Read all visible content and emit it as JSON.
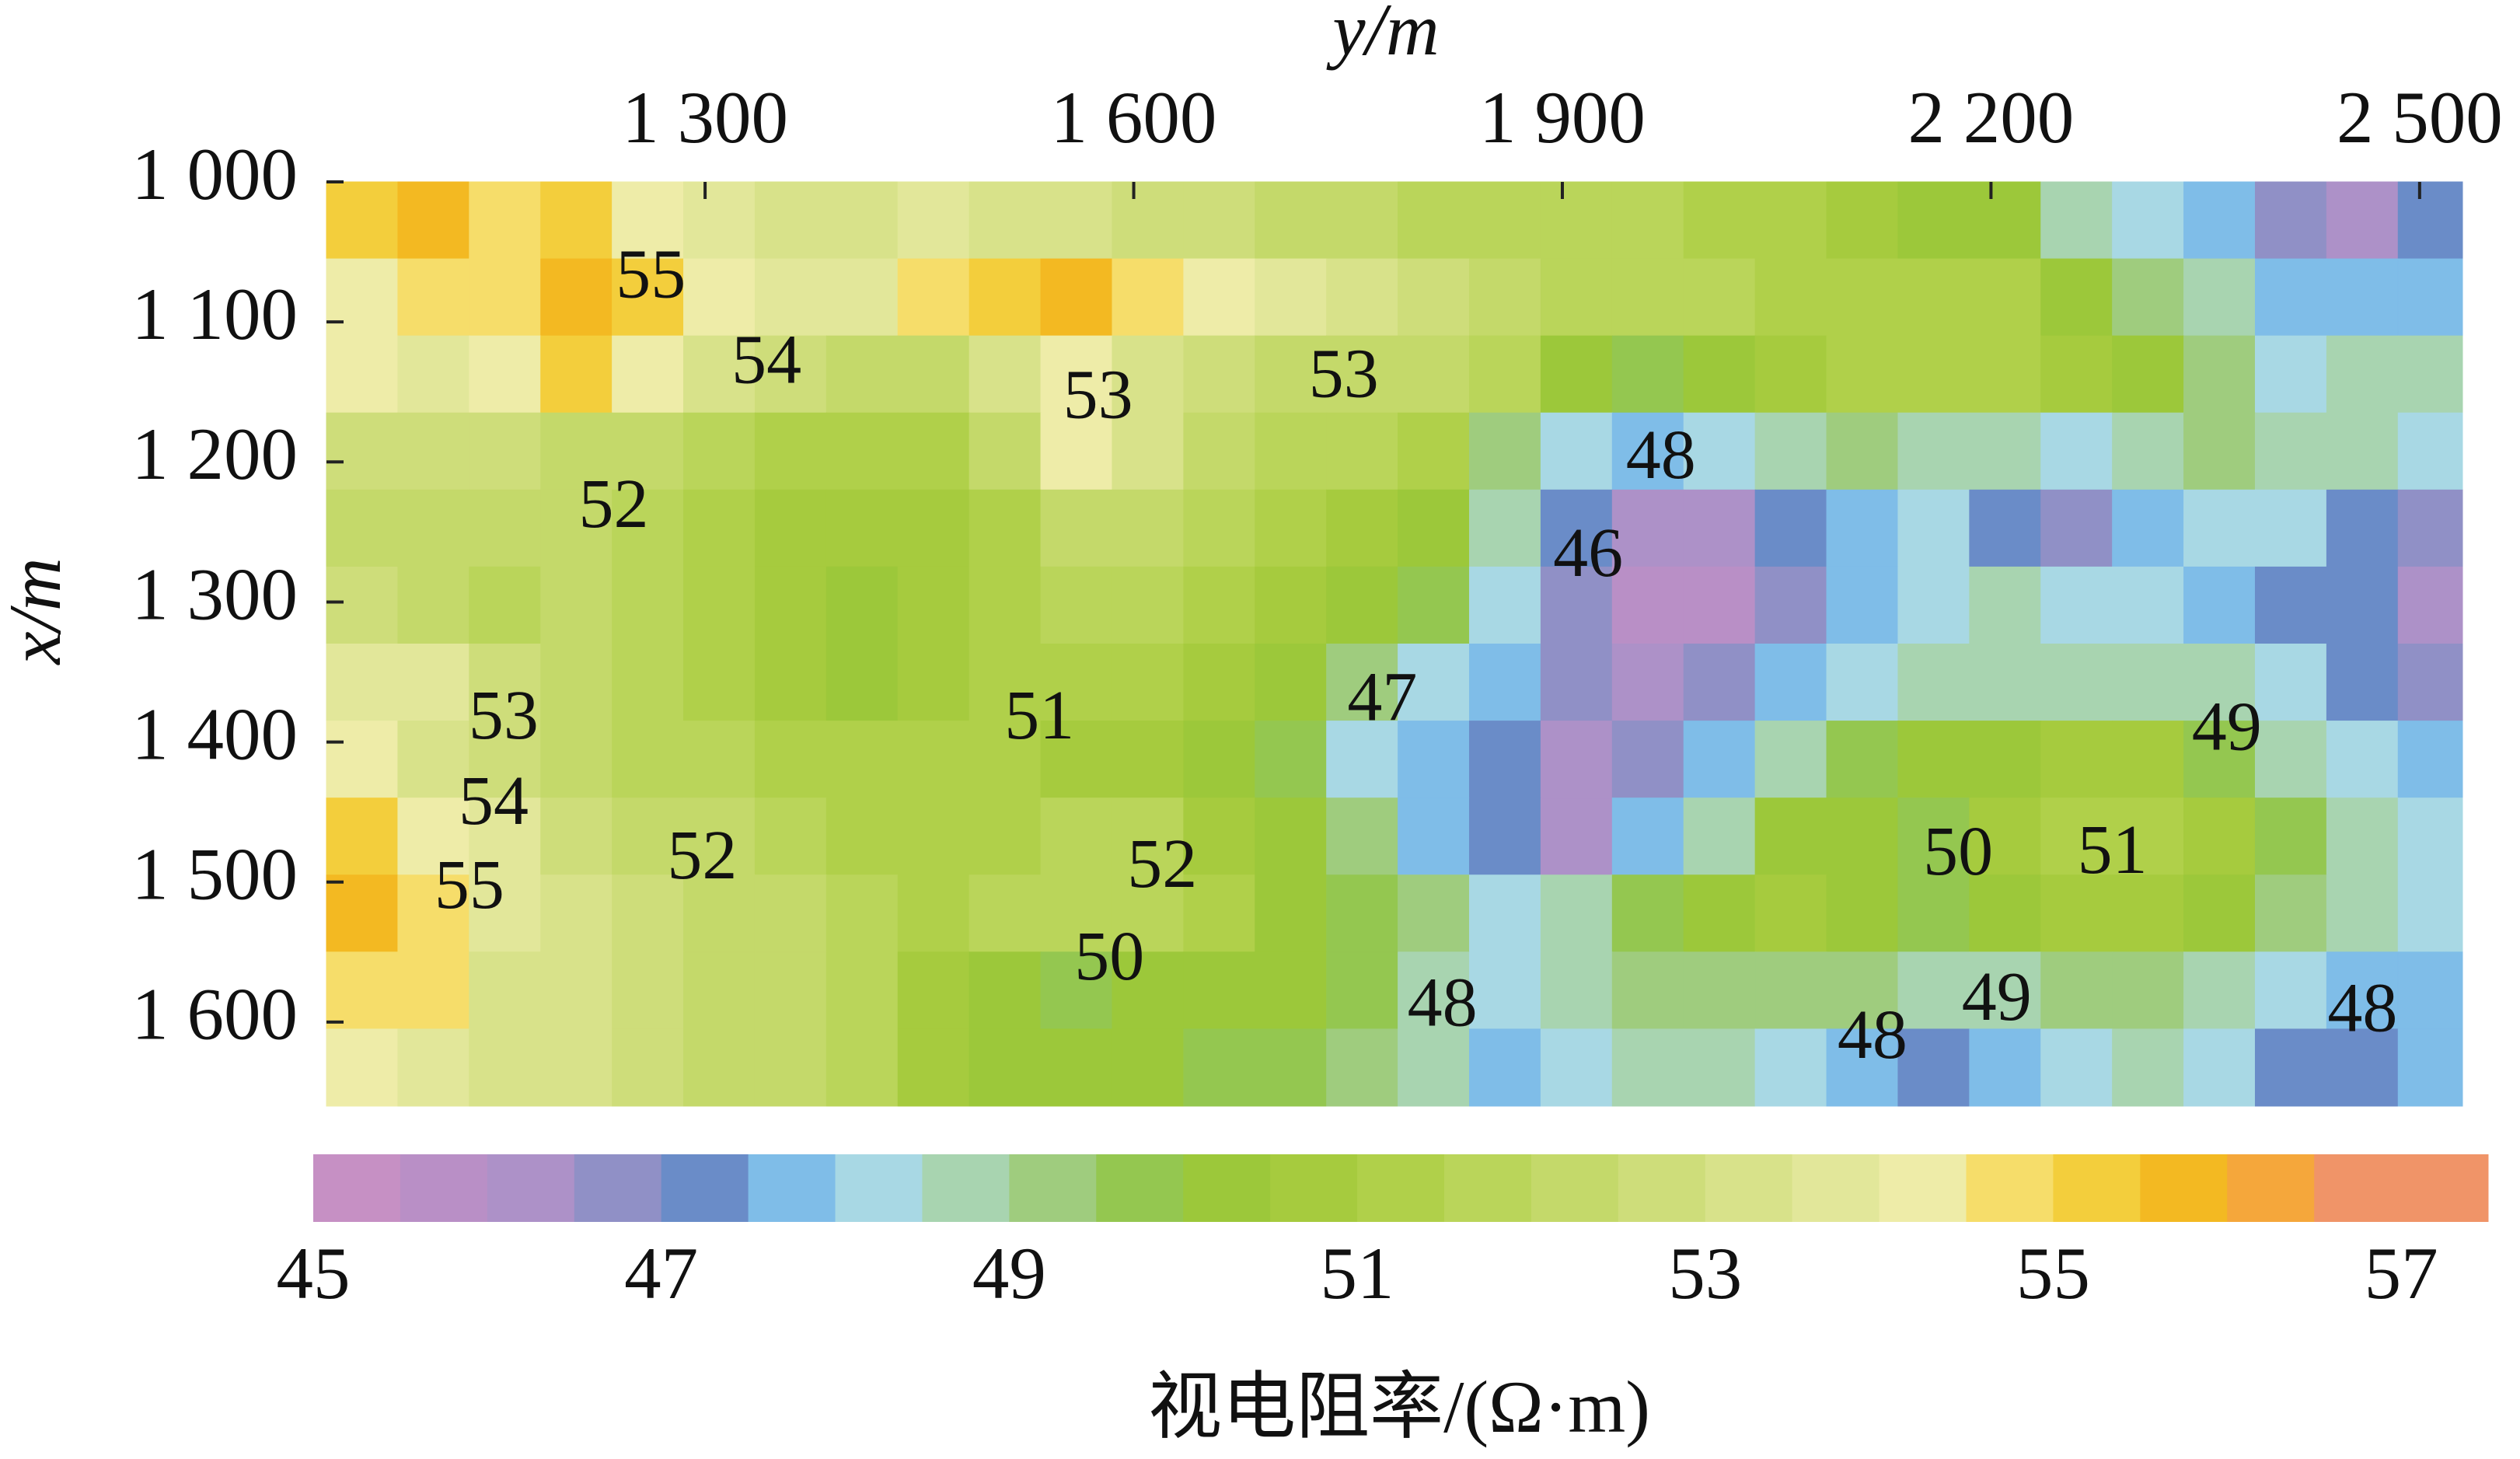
{
  "chart_data": {
    "type": "contour",
    "xlabel": "y/m",
    "ylabel": "x/m",
    "colorbar_label": "视电阻率/(Ω·m)",
    "xlim": [
      1035,
      2530
    ],
    "xticks": [
      {
        "value": 1300,
        "label": "1 300"
      },
      {
        "value": 1600,
        "label": "1 600"
      },
      {
        "value": 1900,
        "label": "1 900"
      },
      {
        "value": 2200,
        "label": "2 200"
      },
      {
        "value": 2500,
        "label": "2 500"
      }
    ],
    "ylim": [
      1000,
      1660
    ],
    "y_inverted": true,
    "yticks": [
      {
        "value": 1000,
        "label": "1 000"
      },
      {
        "value": 1100,
        "label": "1 100"
      },
      {
        "value": 1200,
        "label": "1 200"
      },
      {
        "value": 1300,
        "label": "1 300"
      },
      {
        "value": 1400,
        "label": "1 400"
      },
      {
        "value": 1500,
        "label": "1 500"
      },
      {
        "value": 1600,
        "label": "1 600"
      }
    ],
    "clim": [
      45,
      57.5
    ],
    "cticks": [
      45,
      47,
      49,
      51,
      53,
      55,
      57
    ],
    "colors": [
      "#c690c4",
      "#b98fc6",
      "#ad91c8",
      "#9090c6",
      "#6a8cc8",
      "#7fbde8",
      "#a8d8e4",
      "#a8d4b0",
      "#9fcc7e",
      "#94c750",
      "#9cc83a",
      "#a6cb3e",
      "#b0d04a",
      "#bad55a",
      "#c4d96a",
      "#cedd7a",
      "#d8e28a",
      "#e2e79a",
      "#eeeca8",
      "#f6dd6a",
      "#f3ce3c",
      "#f3b922",
      "#f5a73b",
      "#f09468",
      "#f09468"
    ],
    "x": [
      1060,
      1110,
      1160,
      1210,
      1260,
      1310,
      1360,
      1410,
      1460,
      1510,
      1560,
      1610,
      1660,
      1710,
      1760,
      1810,
      1860,
      1910,
      1960,
      2010,
      2060,
      2110,
      2160,
      2210,
      2260,
      2310,
      2360,
      2410,
      2460,
      2510
    ],
    "y": [
      1027.5,
      1082.5,
      1137.5,
      1192.5,
      1247.5,
      1302.5,
      1357.5,
      1412.5,
      1467.5,
      1522.5,
      1577.5,
      1632.5
    ],
    "z": [
      [
        55,
        55.5,
        54.5,
        55,
        54,
        53.5,
        53,
        53,
        53.5,
        53,
        53,
        52.5,
        52.5,
        52,
        52,
        51.5,
        51.5,
        51.5,
        51.5,
        51,
        51,
        50.5,
        50,
        50,
        48.5,
        48,
        47.5,
        46.5,
        46,
        47
      ],
      [
        54,
        54.5,
        54.5,
        55.5,
        55,
        54,
        53.5,
        53.5,
        54.5,
        55,
        55.5,
        54.5,
        54,
        53.5,
        53,
        52.5,
        52,
        51.5,
        51.5,
        51.5,
        51,
        51,
        51,
        51,
        50,
        49,
        48.5,
        47.5,
        47.5,
        47.5
      ],
      [
        54,
        53.5,
        54,
        55,
        54,
        53,
        52.5,
        52,
        52,
        53,
        54,
        53,
        52.5,
        52,
        52,
        52,
        51.5,
        50,
        49.5,
        50,
        50.5,
        51,
        51,
        51,
        50.5,
        50,
        49,
        48,
        48.5,
        48.5
      ],
      [
        52.5,
        52.5,
        52.5,
        52,
        52,
        51.5,
        51,
        51,
        51,
        52,
        54,
        53,
        52,
        51.5,
        51.5,
        51,
        49,
        48,
        47.5,
        48,
        48.5,
        49,
        48.5,
        48.5,
        48,
        48.5,
        49,
        48.5,
        48.5,
        48
      ],
      [
        52,
        52,
        52,
        52,
        51.5,
        51,
        50.5,
        50.5,
        50.5,
        51,
        52,
        52,
        51.5,
        51,
        50.5,
        50,
        48.5,
        47,
        46,
        46,
        47,
        47.5,
        48,
        47,
        46.5,
        47.5,
        48,
        48,
        47,
        46.5
      ],
      [
        52.5,
        52,
        51.5,
        52,
        51.5,
        51,
        50.5,
        50,
        50.5,
        51,
        51.5,
        51.5,
        51,
        50.5,
        50,
        49.5,
        48,
        46.5,
        45.5,
        45.5,
        46.5,
        47.5,
        48,
        48.5,
        48,
        48,
        47.5,
        47,
        47,
        46
      ],
      [
        53.5,
        53.5,
        52.5,
        52,
        51.5,
        51,
        50.5,
        50,
        50.5,
        51,
        51,
        51,
        50.5,
        50,
        49,
        48,
        47.5,
        46.5,
        46,
        46.5,
        47.5,
        48,
        48.5,
        48.5,
        48.5,
        48.5,
        48.5,
        48,
        47,
        46.5
      ],
      [
        54,
        53,
        52.5,
        52,
        51.5,
        51.5,
        51,
        51,
        51,
        51,
        50.5,
        50.5,
        50,
        49.5,
        48,
        47.5,
        47,
        46,
        46.5,
        47.5,
        48.5,
        49.5,
        50,
        50,
        50.5,
        50.5,
        49.5,
        48.5,
        48,
        47.5
      ],
      [
        55,
        54,
        53.5,
        52.5,
        52,
        52,
        51.5,
        51,
        51,
        51,
        51.5,
        51.5,
        50.5,
        50,
        49,
        47.5,
        47,
        46,
        47.5,
        48.5,
        50,
        50,
        49.5,
        50.5,
        51,
        51,
        50.5,
        49.5,
        48.5,
        48
      ],
      [
        55.5,
        54.5,
        53.5,
        53,
        52.5,
        52,
        52,
        51.5,
        51,
        51.5,
        51.5,
        51.5,
        51,
        50,
        49.5,
        49,
        48,
        48.5,
        49.5,
        50,
        50.5,
        50,
        49.5,
        50,
        50.5,
        50.5,
        50,
        49,
        48.5,
        48
      ],
      [
        54.5,
        54.5,
        53,
        53,
        52.5,
        52,
        52,
        51.5,
        50.5,
        50,
        49.5,
        50,
        50,
        50,
        49.5,
        48.5,
        48,
        48.5,
        49,
        49,
        49,
        49,
        48.5,
        48.5,
        49,
        49,
        48.5,
        48,
        47.5,
        47.5
      ],
      [
        54,
        53.5,
        53,
        53,
        52.5,
        52,
        52,
        51.5,
        50.5,
        50,
        50,
        50,
        49.5,
        49.5,
        49,
        48.5,
        47.5,
        48,
        48.5,
        48.5,
        48,
        47.5,
        47,
        47.5,
        48,
        48.5,
        48,
        47,
        47,
        47.5
      ]
    ],
    "contour_labels": [
      {
        "x": 1262,
        "y": 1071,
        "value": 55
      },
      {
        "x": 1343,
        "y": 1132,
        "value": 54
      },
      {
        "x": 1575,
        "y": 1157,
        "value": 53
      },
      {
        "x": 1747,
        "y": 1142,
        "value": 53
      },
      {
        "x": 1969,
        "y": 1200,
        "value": 48
      },
      {
        "x": 1236,
        "y": 1235,
        "value": 52
      },
      {
        "x": 1918,
        "y": 1270,
        "value": 46
      },
      {
        "x": 1159,
        "y": 1386,
        "value": 53
      },
      {
        "x": 1534,
        "y": 1386,
        "value": 51
      },
      {
        "x": 1774,
        "y": 1373,
        "value": 47
      },
      {
        "x": 2365,
        "y": 1394,
        "value": 49
      },
      {
        "x": 1152,
        "y": 1447,
        "value": 54
      },
      {
        "x": 1298,
        "y": 1486,
        "value": 52
      },
      {
        "x": 2177,
        "y": 1483,
        "value": 50
      },
      {
        "x": 2285,
        "y": 1482,
        "value": 51
      },
      {
        "x": 1135,
        "y": 1507,
        "value": 55
      },
      {
        "x": 1620,
        "y": 1492,
        "value": 52
      },
      {
        "x": 1583,
        "y": 1558,
        "value": 50
      },
      {
        "x": 2204,
        "y": 1587,
        "value": 49
      },
      {
        "x": 1816,
        "y": 1591,
        "value": 48
      },
      {
        "x": 2117,
        "y": 1614,
        "value": 48
      },
      {
        "x": 2460,
        "y": 1595,
        "value": 48
      }
    ]
  }
}
